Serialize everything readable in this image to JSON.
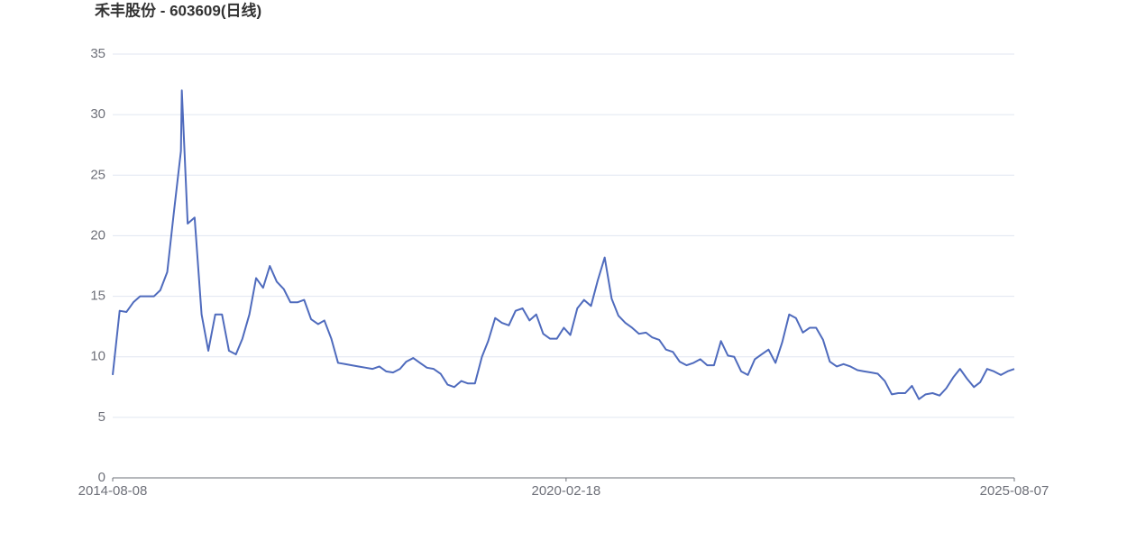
{
  "chart_data": {
    "type": "line",
    "title": "禾丰股份 - 603609(日线)",
    "x": [
      "2014-08-08",
      "2014-09-08",
      "2014-10-08",
      "2014-11-08",
      "2014-12-08",
      "2015-01-08",
      "2015-02-08",
      "2015-03-08",
      "2015-04-08",
      "2015-05-08",
      "2015-06-08",
      "2015-06-12",
      "2015-07-08",
      "2015-08-08",
      "2015-09-08",
      "2015-10-08",
      "2015-11-08",
      "2015-12-08",
      "2016-01-08",
      "2016-02-08",
      "2016-03-08",
      "2016-04-08",
      "2016-05-08",
      "2016-06-08",
      "2016-07-08",
      "2016-08-08",
      "2016-09-08",
      "2016-10-08",
      "2016-11-08",
      "2016-12-08",
      "2017-01-08",
      "2017-02-08",
      "2017-03-08",
      "2017-04-08",
      "2017-05-08",
      "2017-06-08",
      "2017-07-08",
      "2017-08-08",
      "2017-09-08",
      "2017-10-08",
      "2017-11-08",
      "2017-12-08",
      "2018-01-08",
      "2018-02-08",
      "2018-03-08",
      "2018-04-08",
      "2018-05-08",
      "2018-06-08",
      "2018-07-08",
      "2018-08-08",
      "2018-09-08",
      "2018-10-08",
      "2018-11-08",
      "2018-12-08",
      "2019-01-08",
      "2019-02-08",
      "2019-03-08",
      "2019-04-08",
      "2019-05-08",
      "2019-06-08",
      "2019-07-08",
      "2019-08-08",
      "2019-09-08",
      "2019-10-08",
      "2019-11-08",
      "2019-12-08",
      "2020-01-08",
      "2020-02-08",
      "2020-03-08",
      "2020-04-08",
      "2020-05-08",
      "2020-06-08",
      "2020-07-08",
      "2020-08-08",
      "2020-09-08",
      "2020-10-08",
      "2020-11-08",
      "2020-12-08",
      "2021-01-08",
      "2021-02-08",
      "2021-03-08",
      "2021-04-08",
      "2021-05-08",
      "2021-06-08",
      "2021-07-08",
      "2021-08-08",
      "2021-09-08",
      "2021-10-08",
      "2021-11-08",
      "2021-12-08",
      "2022-01-08",
      "2022-02-08",
      "2022-03-08",
      "2022-04-08",
      "2022-05-08",
      "2022-06-08",
      "2022-07-08",
      "2022-08-08",
      "2022-09-08",
      "2022-10-08",
      "2022-11-08",
      "2022-12-08",
      "2023-01-08",
      "2023-02-08",
      "2023-03-08",
      "2023-04-08",
      "2023-05-08",
      "2023-06-08",
      "2023-07-08",
      "2023-08-08",
      "2023-09-08",
      "2023-10-08",
      "2023-11-08",
      "2023-12-08",
      "2024-01-08",
      "2024-02-08",
      "2024-03-08",
      "2024-04-08",
      "2024-05-08",
      "2024-06-08",
      "2024-07-08",
      "2024-08-08",
      "2024-09-08",
      "2024-10-08",
      "2024-11-08",
      "2024-12-08",
      "2025-01-08",
      "2025-02-08",
      "2025-03-08",
      "2025-04-08",
      "2025-05-08",
      "2025-06-08",
      "2025-07-08",
      "2025-08-07"
    ],
    "series": [
      {
        "color": "#4f6bbd",
        "values": [
          8.5,
          13.8,
          13.7,
          14.5,
          15,
          15,
          15,
          15.5,
          17,
          22,
          27,
          32,
          21,
          21.5,
          13.5,
          10.5,
          13.5,
          13.5,
          10.5,
          10.2,
          11.5,
          13.5,
          16.5,
          15.7,
          17.5,
          16.2,
          15.6,
          14.5,
          14.5,
          14.7,
          13.1,
          12.7,
          13,
          11.5,
          9.5,
          9.4,
          9.3,
          9.2,
          9.1,
          9,
          9.2,
          8.8,
          8.7,
          9,
          9.6,
          9.9,
          9.5,
          9.1,
          9,
          8.6,
          7.7,
          7.5,
          8,
          7.8,
          7.8,
          10,
          11.3,
          13.2,
          12.8,
          12.6,
          13.8,
          14,
          13,
          13.5,
          11.9,
          11.5,
          11.5,
          12.4,
          11.8,
          14,
          14.7,
          14.2,
          16.3,
          18.2,
          14.8,
          13.4,
          12.8,
          12.4,
          11.9,
          12,
          11.6,
          11.4,
          10.6,
          10.4,
          9.6,
          9.3,
          9.5,
          9.8,
          9.3,
          9.3,
          11.3,
          10.1,
          10,
          8.8,
          8.5,
          9.8,
          10.2,
          10.6,
          9.5,
          11.2,
          13.5,
          13.2,
          12,
          12.4,
          12.4,
          11.4,
          9.6,
          9.2,
          9.4,
          9.2,
          8.9,
          8.8,
          8.7,
          8.6,
          8,
          6.9,
          7,
          7,
          7.6,
          6.5,
          6.9,
          7,
          6.8,
          7.4,
          8.3,
          9,
          8.2,
          7.5,
          7.9,
          9,
          8.8,
          8.5,
          8.8,
          9
        ]
      }
    ],
    "xlim": [
      "2014-08-08",
      "2025-08-07"
    ],
    "xticks": [
      "2014-08-08",
      "2020-02-18",
      "2025-08-07"
    ],
    "ylim": [
      0,
      35
    ],
    "yticks": [
      0,
      5,
      10,
      15,
      20,
      25,
      30,
      35
    ],
    "grid": true
  }
}
